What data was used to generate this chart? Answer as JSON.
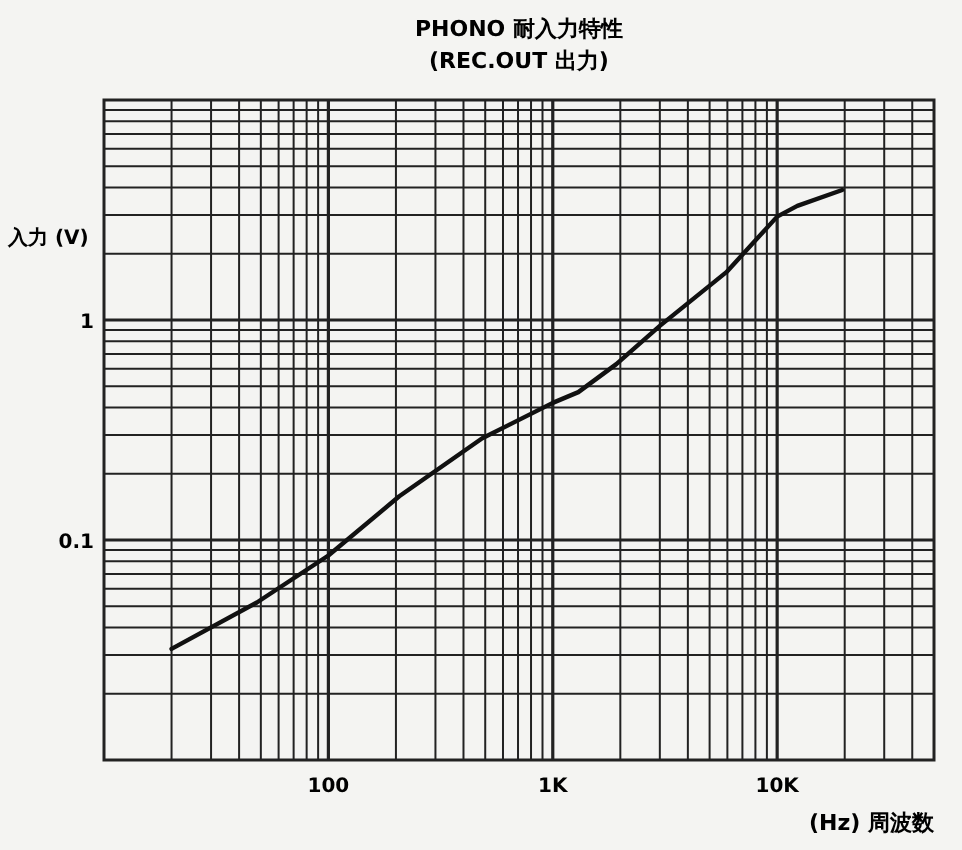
{
  "chart_data": {
    "type": "line",
    "title": "PHONO 耐入力特性",
    "subtitle": "(REC.OUT 出力)",
    "xlabel": "(Hz) 周波数",
    "ylabel": "入力 (V)",
    "log": "xy",
    "grid": true,
    "marker": "none",
    "line_style": "solid",
    "xlim": [
      10,
      50000
    ],
    "ylim": [
      0.01,
      10
    ],
    "xticks": [
      {
        "value": 10,
        "label": null
      },
      {
        "value": 20,
        "label": null
      },
      {
        "value": 30,
        "label": null
      },
      {
        "value": 40,
        "label": null
      },
      {
        "value": 50,
        "label": null
      },
      {
        "value": 60,
        "label": null
      },
      {
        "value": 70,
        "label": null
      },
      {
        "value": 80,
        "label": null
      },
      {
        "value": 90,
        "label": null
      },
      100,
      {
        "value": 200,
        "label": null
      },
      {
        "value": 300,
        "label": null
      },
      {
        "value": 400,
        "label": null
      },
      {
        "value": 500,
        "label": null
      },
      {
        "value": 600,
        "label": null
      },
      {
        "value": 700,
        "label": null
      },
      {
        "value": 800,
        "label": null
      },
      {
        "value": 900,
        "label": null
      },
      {
        "value": 1000,
        "label": "1K"
      },
      {
        "value": 2000,
        "label": null
      },
      {
        "value": 3000,
        "label": null
      },
      {
        "value": 4000,
        "label": null
      },
      {
        "value": 5000,
        "label": null
      },
      {
        "value": 6000,
        "label": null
      },
      {
        "value": 7000,
        "label": null
      },
      {
        "value": 8000,
        "label": null
      },
      {
        "value": 9000,
        "label": null
      },
      {
        "value": 10000,
        "label": "10K"
      },
      {
        "value": 20000,
        "label": null
      },
      {
        "value": 30000,
        "label": null
      },
      {
        "value": 40000,
        "label": null
      },
      {
        "value": 50000,
        "label": null
      }
    ],
    "yticks": [
      {
        "value": 0.01,
        "label": null
      },
      {
        "value": 0.02,
        "label": null
      },
      {
        "value": 0.03,
        "label": null
      },
      {
        "value": 0.04,
        "label": null
      },
      {
        "value": 0.05,
        "label": null
      },
      {
        "value": 0.06,
        "label": null
      },
      {
        "value": 0.07,
        "label": null
      },
      {
        "value": 0.08,
        "label": null
      },
      {
        "value": 0.09,
        "label": null
      },
      0.1,
      {
        "value": 0.2,
        "label": null
      },
      {
        "value": 0.3,
        "label": null
      },
      {
        "value": 0.4,
        "label": null
      },
      {
        "value": 0.5,
        "label": null
      },
      {
        "value": 0.6,
        "label": null
      },
      {
        "value": 0.7,
        "label": null
      },
      {
        "value": 0.8,
        "label": null
      },
      {
        "value": 0.9,
        "label": null
      },
      1,
      {
        "value": 2,
        "label": null
      },
      {
        "value": 3,
        "label": null
      },
      {
        "value": 4,
        "label": null
      },
      {
        "value": 5,
        "label": null
      },
      {
        "value": 6,
        "label": null
      },
      {
        "value": 7,
        "label": null
      },
      {
        "value": 8,
        "label": null
      },
      {
        "value": 9,
        "label": null
      },
      {
        "value": 10,
        "label": null
      }
    ],
    "series": [
      {
        "color": "#111111",
        "x": [
          20,
          48,
          100,
          207,
          485,
          1000,
          1300,
          1920,
          3000,
          5940,
          10000,
          12300,
          19500
        ],
        "values": [
          0.032,
          0.052,
          0.085,
          0.158,
          0.29,
          0.42,
          0.47,
          0.63,
          0.94,
          1.65,
          2.95,
          3.3,
          3.9
        ]
      }
    ]
  }
}
